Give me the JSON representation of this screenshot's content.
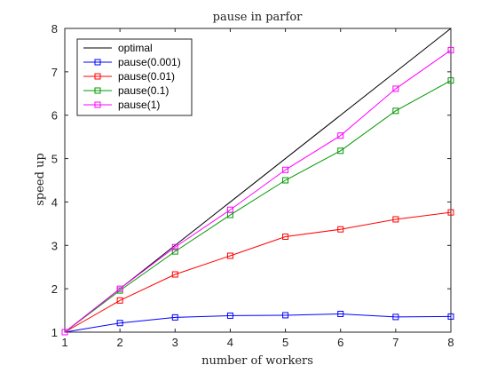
{
  "chart_data": {
    "type": "line",
    "title": "pause in parfor",
    "xlabel": "number of workers",
    "ylabel": "speed up",
    "xlim": [
      1,
      8
    ],
    "ylim": [
      1,
      8
    ],
    "x_ticks": [
      "1",
      "2",
      "3",
      "4",
      "5",
      "6",
      "7",
      "8"
    ],
    "y_ticks": [
      "1",
      "2",
      "3",
      "4",
      "5",
      "6",
      "7",
      "8"
    ],
    "grid": false,
    "legend_position": "top-left",
    "x": [
      1,
      2,
      3,
      4,
      5,
      6,
      7,
      8
    ],
    "series": [
      {
        "name": "optimal",
        "values": [
          1,
          2,
          3,
          4,
          5,
          6,
          7,
          8
        ],
        "color": "#000000",
        "marker": "none"
      },
      {
        "name": "pause(0.001)",
        "values": [
          1,
          1.21,
          1.34,
          1.38,
          1.39,
          1.42,
          1.35,
          1.36
        ],
        "color": "#0000ff",
        "marker": "square"
      },
      {
        "name": "pause(0.01)",
        "values": [
          1,
          1.73,
          2.33,
          2.76,
          3.2,
          3.37,
          3.6,
          3.76
        ],
        "color": "#ff0000",
        "marker": "square"
      },
      {
        "name": "pause(0.1)",
        "values": [
          1,
          1.96,
          2.86,
          3.7,
          4.5,
          5.18,
          6.1,
          6.8
        ],
        "color": "#009900",
        "marker": "square"
      },
      {
        "name": "pause(1)",
        "values": [
          1,
          2.0,
          2.96,
          3.82,
          4.74,
          5.53,
          6.61,
          7.5
        ],
        "color": "#ff00ff",
        "marker": "square"
      }
    ]
  }
}
